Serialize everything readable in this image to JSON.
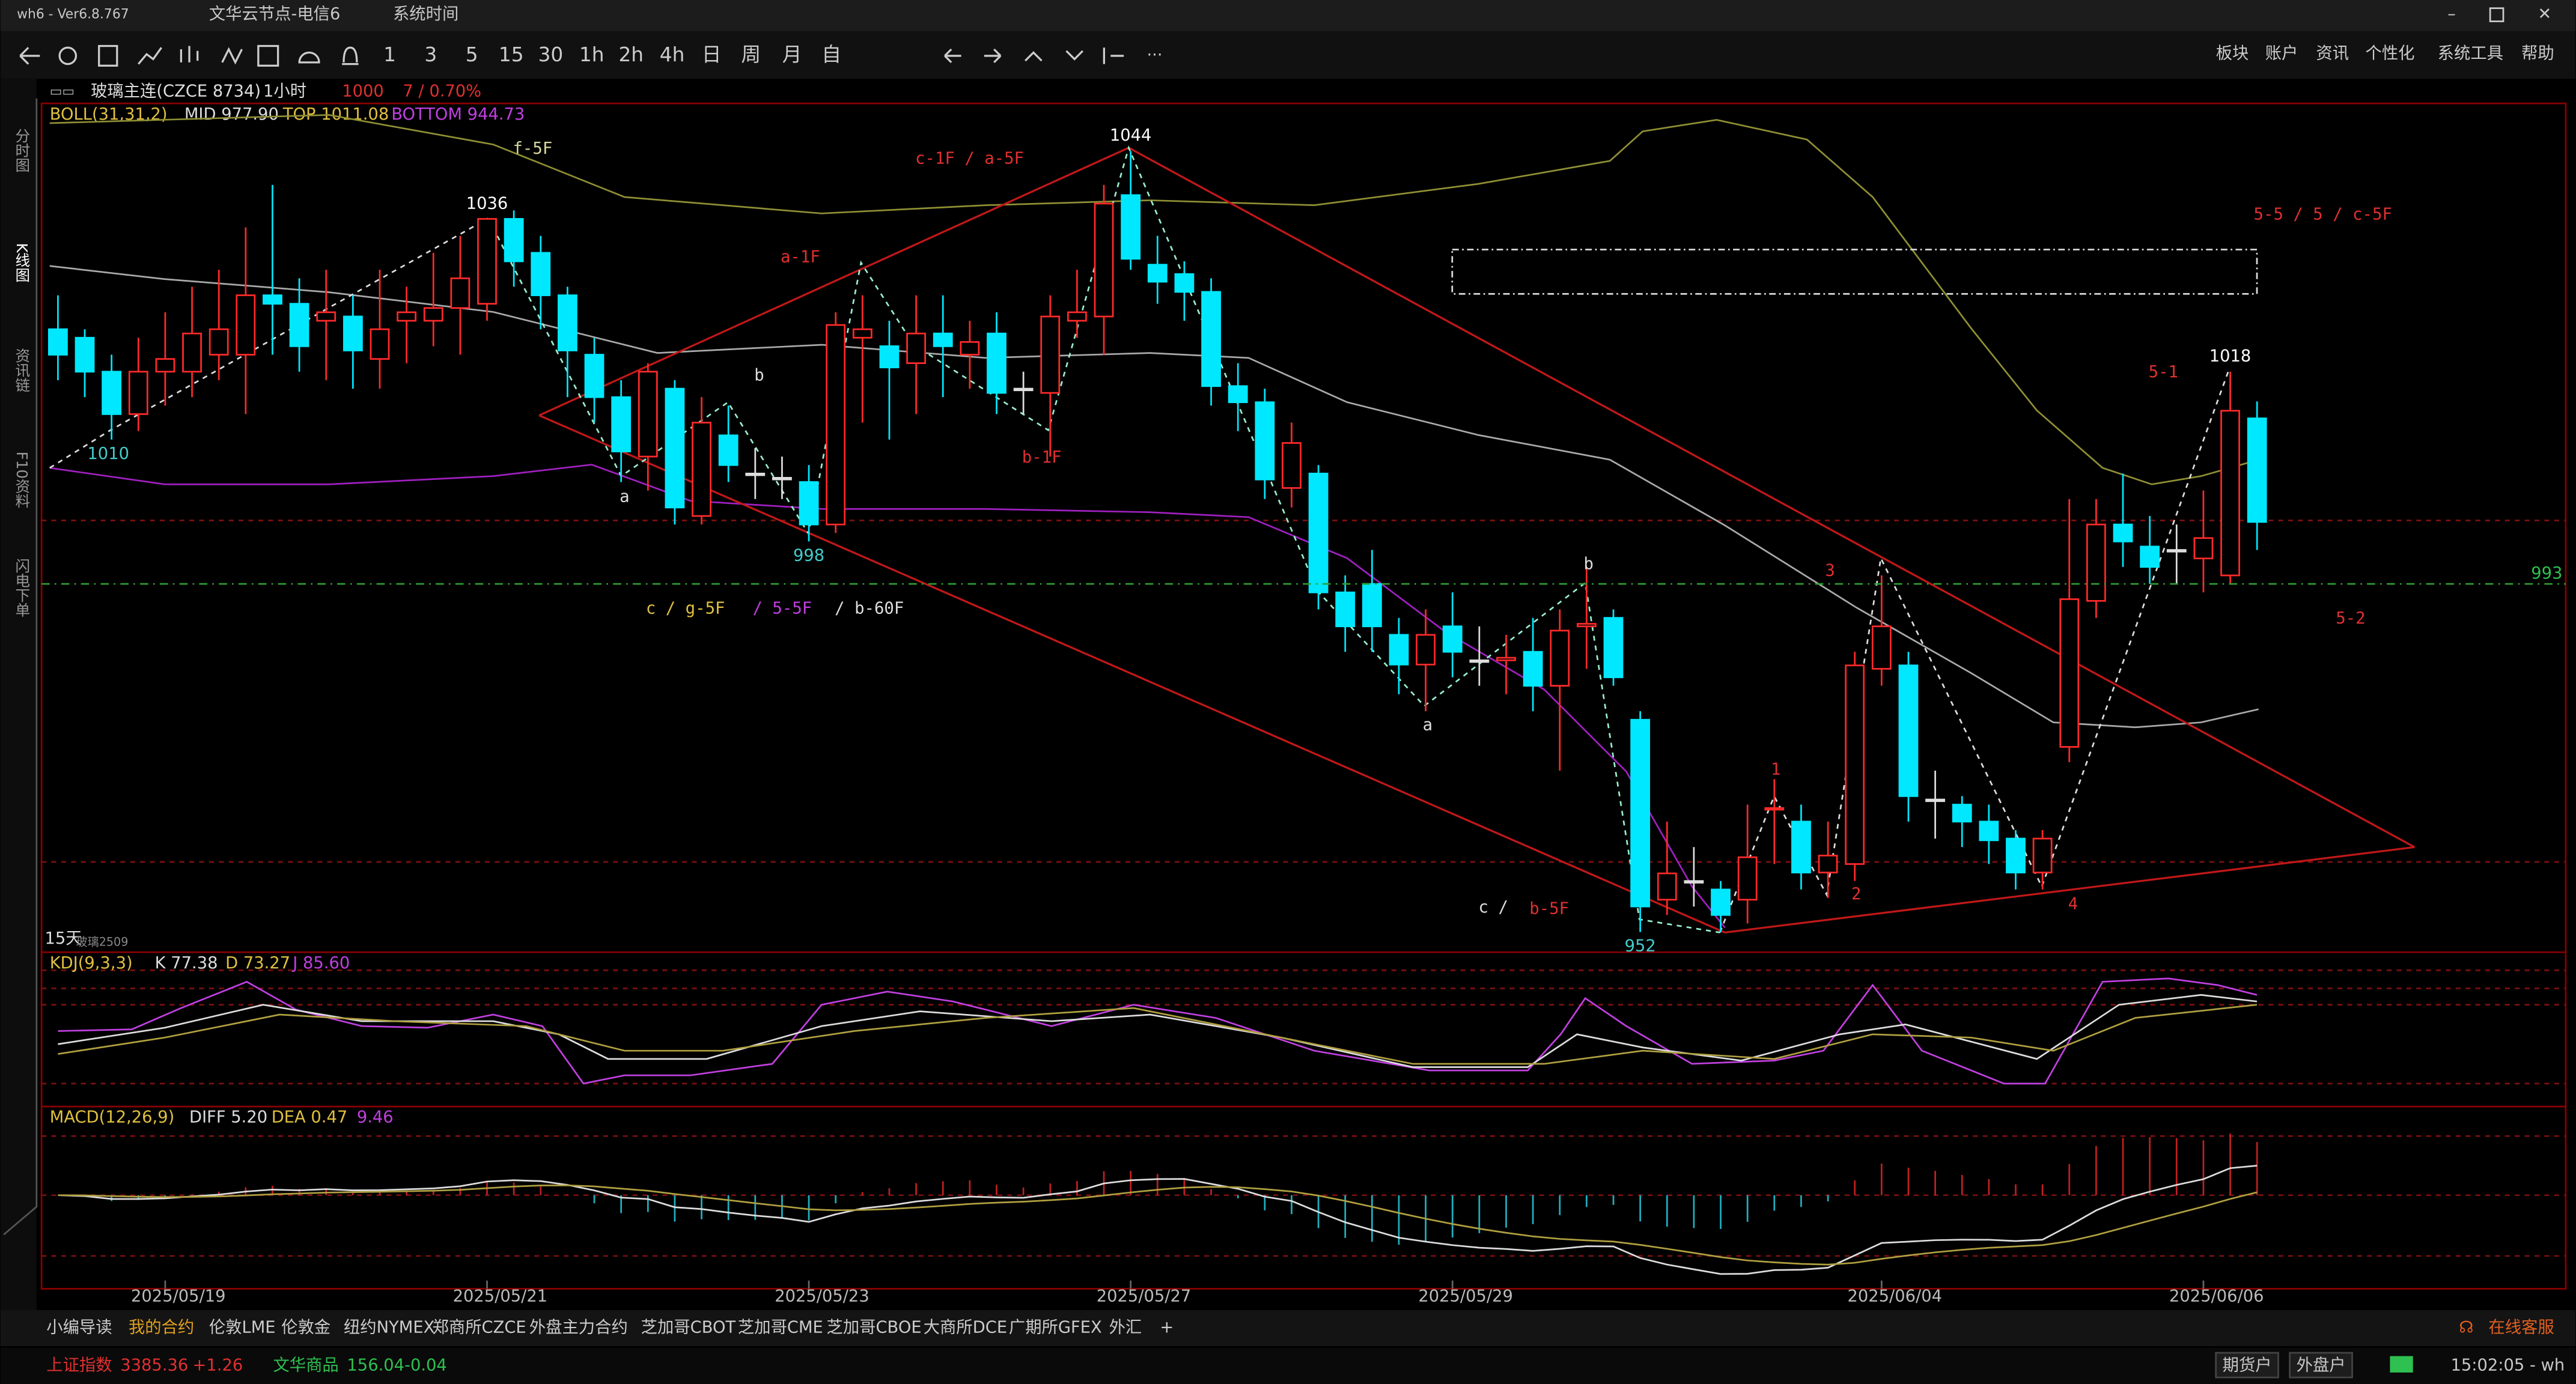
{
  "window": {
    "app": "wh6 - Ver6.8.767",
    "server": "文华云节点-电信6",
    "menu": "系统时间"
  },
  "toolbar": {
    "periods": [
      "1",
      "3",
      "5",
      "15",
      "30",
      "1h",
      "2h",
      "4h",
      "日",
      "周",
      "月",
      "自"
    ],
    "menu": [
      "板块",
      "账户",
      "资讯",
      "个性化",
      "系统工具",
      "帮助"
    ]
  },
  "side_tabs": [
    "分时图",
    "K线图",
    "资讯链",
    "F10资料",
    "闪电下单"
  ],
  "chart_header": {
    "symbol": "玻璃主连(CZCE 8734)",
    "period": "1小时",
    "price": 1000,
    "change": "7 / 0.70%"
  },
  "boll": {
    "name": "BOLL(31,31,2)",
    "mid": "MID 977.90",
    "top": "TOP 1011.08",
    "bottom": "BOTTOM 944.73"
  },
  "kdj": {
    "name": "KDJ(9,3,3)",
    "k": "K 77.38",
    "d": "D 73.27",
    "j": "J 85.60"
  },
  "macd": {
    "name": "MACD(12,26,9)",
    "diff": "DIFF 5.20",
    "dea": "DEA 0.47",
    "macd": 9.46
  },
  "chart_data": {
    "type": "candlestick",
    "categories": [
      null,
      null,
      null,
      null,
      "2025/05/19",
      null,
      null,
      null,
      null,
      null,
      null,
      null,
      null,
      null,
      null,
      null,
      "2025/05/21",
      null,
      null,
      null,
      null,
      null,
      null,
      null,
      null,
      null,
      null,
      null,
      "2025/05/23",
      null,
      null,
      null,
      null,
      null,
      null,
      null,
      null,
      null,
      null,
      null,
      "2025/05/27",
      null,
      null,
      null,
      null,
      null,
      null,
      null,
      null,
      null,
      null,
      null,
      "2025/05/29",
      null,
      null,
      null,
      null,
      null,
      null,
      null,
      null,
      null,
      null,
      null,
      null,
      null,
      null,
      null,
      "2025/06/04",
      null,
      null,
      null,
      null,
      null,
      null,
      null,
      null,
      null,
      null,
      null,
      "2025/06/06",
      null,
      null
    ],
    "open": [
      1023,
      1022,
      1018,
      1013,
      1018,
      1018,
      1020,
      1020,
      1027,
      1026,
      1024,
      1024.5,
      1019.5,
      1024,
      1024,
      1025.5,
      1026,
      1036,
      1032,
      1027,
      1020,
      1015,
      1008,
      1016,
      1001,
      1010.5,
      1006,
      1005.5,
      1005,
      1000,
      1022,
      1021,
      1019,
      1022.5,
      1020,
      1022.5,
      1016,
      1015.5,
      1024,
      1024.5,
      1038.8,
      1030.6,
      1029.5,
      1027.4,
      1016.3,
      1014.4,
      1004.3,
      1006,
      992,
      993,
      987,
      983.5,
      988,
      984,
      984,
      985,
      981,
      988,
      989,
      977,
      955.8,
      958,
      957,
      955.8,
      966.5,
      965,
      959,
      960,
      983,
      983.4,
      967.6,
      967,
      965,
      963,
      959,
      973.8,
      991,
      1000,
      997.4,
      997,
      996,
      994,
      1012.5
    ],
    "high": [
      1027,
      1023,
      1020,
      1022,
      1025,
      1028,
      1030,
      1035,
      1040,
      1029,
      1030,
      1027,
      1030,
      1028,
      1032,
      1034,
      1036,
      1037,
      1034,
      1028,
      1022,
      1017,
      1019,
      1017,
      1015,
      1014,
      1009,
      1008,
      1007,
      1025,
      1027,
      1024,
      1027,
      1027,
      1024,
      1025,
      1018,
      1027,
      1030,
      1040,
      1044,
      1034,
      1031,
      1029,
      1019,
      1016,
      1012,
      1007,
      994,
      997,
      989,
      990,
      992,
      988,
      987,
      989,
      990,
      995,
      990,
      978,
      965,
      962,
      958,
      967,
      970,
      967,
      965,
      985,
      994,
      985,
      971,
      968,
      967,
      964,
      964,
      1003,
      1003,
      1006,
      1001,
      1000,
      1004,
      1018,
      1014.5
    ],
    "low": [
      1017,
      1015,
      1010,
      1011,
      1014,
      1015,
      1017,
      1013,
      1020,
      1018,
      1017,
      1016,
      1016,
      1019,
      1021,
      1020,
      1024,
      1028,
      1023,
      1015,
      1012,
      1005,
      1004,
      1000,
      1000,
      1005,
      1003,
      1003,
      998,
      999,
      1012,
      1010,
      1013,
      1015,
      1016,
      1013,
      1013,
      1008,
      1022,
      1020,
      1030,
      1026,
      1024,
      1014,
      1011,
      1003,
      1002,
      990,
      985,
      985,
      980,
      978,
      982,
      981,
      980,
      978,
      971,
      983,
      981,
      952,
      954,
      955,
      952,
      953,
      960,
      957,
      956,
      958,
      981,
      965,
      963,
      962,
      960,
      957,
      957,
      972,
      989,
      995,
      993,
      993,
      992,
      993,
      997
    ],
    "close": [
      1020,
      1018,
      1013,
      1018,
      1019.5,
      1022.5,
      1023,
      1027,
      1026,
      1021,
      1025,
      1020.5,
      1023,
      1025,
      1025.5,
      1029,
      1036,
      1031,
      1027,
      1020.5,
      1015,
      1008.6,
      1018,
      1002,
      1012,
      1007,
      1006,
      1005.5,
      1000,
      1023.5,
      1023,
      1018.5,
      1022.5,
      1021,
      1021.5,
      1015.5,
      1016,
      1024.5,
      1025,
      1037.8,
      1031.3,
      1028.6,
      1027.4,
      1016.3,
      1014.4,
      1005.3,
      1009.6,
      992,
      988,
      988,
      983.5,
      987,
      985,
      984,
      984.3,
      981,
      987.5,
      988.3,
      982,
      955,
      958.9,
      958,
      954,
      960.8,
      966.6,
      959,
      961,
      983.4,
      988,
      968,
      967.6,
      965,
      962.8,
      959,
      963,
      991.2,
      1000,
      998,
      995,
      997,
      998.4,
      1013.4,
      1000.3
    ],
    "ylim": [
      950,
      1049.6
    ],
    "price_line": 993,
    "peak_labels": [
      1036,
      1010,
      998,
      1044,
      952,
      1018
    ],
    "annotations": [
      "f-5F",
      "c-1F / a-5F",
      "a-1F",
      "b",
      "a",
      "b-1F",
      "c / g-5F",
      "/ 5-5F",
      "/ b-60F",
      "5-5 / 5 / c-5F",
      "5-1",
      "5-2",
      "3",
      "b",
      "a",
      "1",
      "2",
      "4",
      "c /",
      "b-5F"
    ],
    "footnote": "15天",
    "contract": "玻璃2509"
  },
  "bottom_tabs": [
    "小编导读",
    "我的合约",
    "伦敦LME",
    "伦敦金",
    "纽约NYMEX",
    "郑商所CZCE",
    "外盘主力合约",
    "芝加哥CBOT",
    "芝加哥CME",
    "芝加哥CBOE",
    "大商所DCE",
    "广期所GFEX",
    "外汇",
    "+"
  ],
  "support": "在线客服",
  "status": {
    "index1_name": "上证指数",
    "index1_value": 3385.36,
    "index1_change": "+1.26",
    "index2_name": "文华商品",
    "index2_value": 156.04,
    "index2_change": "-0.04",
    "account1": "期货户",
    "account2": "外盘户",
    "time": "15:02:05 - wh"
  }
}
